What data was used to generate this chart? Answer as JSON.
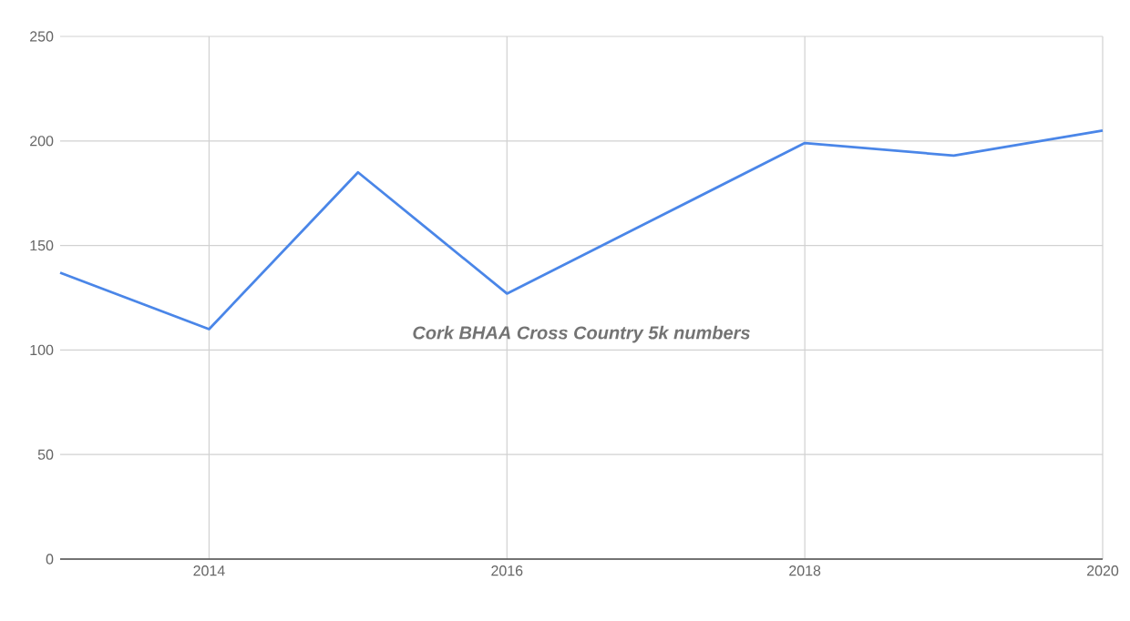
{
  "chart_data": {
    "type": "line",
    "x": [
      2013,
      2014,
      2015,
      2016,
      2017,
      2018,
      2019,
      2020
    ],
    "series": [
      {
        "color": "#4a86e8",
        "values": [
          137,
          110,
          185,
          127,
          163,
          199,
          193,
          205
        ]
      }
    ],
    "xlim": [
      2013,
      2020
    ],
    "xticks": [
      2014,
      2016,
      2018,
      2020
    ],
    "ylim": [
      0,
      250
    ],
    "yticks": [
      0,
      50,
      100,
      150,
      200,
      250
    ],
    "grid": true,
    "marker": "none",
    "line_style": "solid",
    "annotations": [
      "Cork BHAA Cross Country 5k  numbers"
    ]
  }
}
